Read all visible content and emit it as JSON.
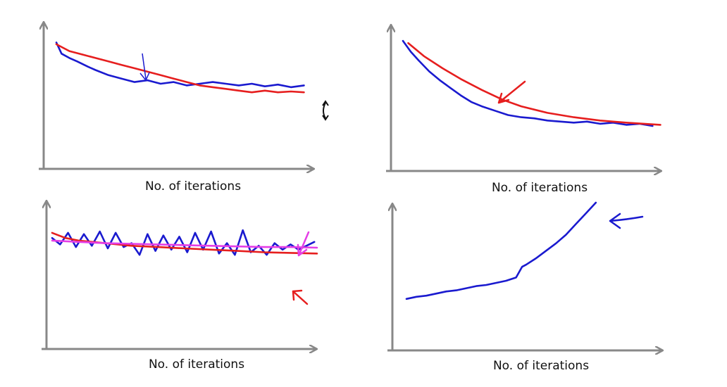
{
  "chart_data": [
    {
      "type": "line",
      "xlabel": "No. of iterations",
      "ylabel": "",
      "grid": false,
      "xlim": [
        0,
        100
      ],
      "ylim": [
        0,
        100
      ],
      "series": [
        {
          "color": "#1a1acf",
          "x": [
            0,
            2,
            5,
            8,
            12,
            15,
            20,
            25,
            30,
            35,
            40,
            45,
            50,
            55,
            60,
            65,
            70,
            75,
            80,
            85,
            90,
            95
          ],
          "y": [
            98,
            85,
            80,
            76,
            70,
            66,
            60,
            56,
            52,
            54,
            50,
            52,
            48,
            50,
            52,
            50,
            48,
            50,
            47,
            49,
            46,
            48
          ]
        },
        {
          "color": "#e61e1e",
          "x": [
            0,
            5,
            10,
            15,
            20,
            25,
            30,
            35,
            40,
            45,
            50,
            55,
            60,
            65,
            70,
            75,
            80,
            85,
            90,
            95
          ],
          "y": [
            96,
            88,
            84,
            80,
            76,
            72,
            68,
            64,
            60,
            56,
            52,
            48,
            46,
            44,
            42,
            40,
            42,
            40,
            41,
            40
          ]
        }
      ],
      "annotations": [
        {
          "text": "↓",
          "color": "#1a1acf"
        },
        {
          "text": "↕",
          "color": "#111111"
        }
      ]
    },
    {
      "type": "line",
      "xlabel": "No. of iterations",
      "ylabel": "",
      "grid": false,
      "xlim": [
        0,
        100
      ],
      "ylim": [
        0,
        100
      ],
      "series": [
        {
          "color": "#1a1acf",
          "x": [
            0,
            3,
            6,
            10,
            14,
            18,
            22,
            26,
            30,
            35,
            40,
            45,
            50,
            55,
            60,
            65,
            70,
            75,
            80,
            85,
            90,
            95
          ],
          "y": [
            98,
            88,
            80,
            70,
            62,
            55,
            48,
            42,
            38,
            34,
            30,
            28,
            27,
            25,
            24,
            23,
            24,
            22,
            23,
            21,
            22,
            20
          ]
        },
        {
          "color": "#e61e1e",
          "x": [
            2,
            8,
            15,
            22,
            30,
            38,
            45,
            55,
            65,
            75,
            85,
            98
          ],
          "y": [
            96,
            84,
            73,
            63,
            53,
            44,
            38,
            32,
            28,
            25,
            23,
            21
          ]
        }
      ],
      "annotations": [
        {
          "text": "↙",
          "color": "#e61e1e"
        }
      ]
    },
    {
      "type": "line",
      "xlabel": "No. of iterations",
      "ylabel": "",
      "grid": false,
      "xlim": [
        0,
        100
      ],
      "ylim": [
        0,
        100
      ],
      "series": [
        {
          "color": "#1a1acf",
          "x": [
            0,
            3,
            6,
            9,
            12,
            15,
            18,
            21,
            24,
            27,
            30,
            33,
            36,
            39,
            42,
            45,
            48,
            51,
            54,
            57,
            60,
            63,
            66,
            69,
            72,
            75,
            78,
            81,
            84,
            87,
            90,
            93,
            96,
            99
          ],
          "y": [
            78,
            68,
            86,
            64,
            84,
            66,
            88,
            62,
            86,
            64,
            70,
            52,
            84,
            58,
            82,
            60,
            80,
            56,
            86,
            60,
            88,
            54,
            70,
            52,
            90,
            56,
            66,
            52,
            70,
            60,
            68,
            60,
            66,
            72
          ]
        },
        {
          "color": "#e61e1e",
          "x": [
            0,
            5,
            10,
            20,
            30,
            40,
            50,
            60,
            70,
            80,
            90,
            100
          ],
          "y": [
            86,
            78,
            74,
            70,
            66,
            64,
            62,
            60,
            58,
            56,
            55,
            54
          ]
        },
        {
          "color": "#e43ee6",
          "x": [
            0,
            10,
            20,
            30,
            40,
            50,
            60,
            70,
            80,
            90,
            100
          ],
          "y": [
            74,
            72,
            70,
            69,
            68,
            67,
            66,
            65,
            64,
            64,
            63
          ]
        }
      ],
      "annotations": [
        {
          "text": "↙",
          "color": "#e43ee6"
        },
        {
          "text": "↖",
          "color": "#e61e1e"
        }
      ]
    },
    {
      "type": "line",
      "xlabel": "No. of iterations",
      "ylabel": "",
      "grid": false,
      "xlim": [
        0,
        100
      ],
      "ylim": [
        0,
        100
      ],
      "series": [
        {
          "color": "#1a1acf",
          "x": [
            0,
            5,
            10,
            15,
            20,
            25,
            30,
            35,
            40,
            45,
            50,
            55,
            58,
            60,
            65,
            70,
            75,
            80,
            85,
            90,
            95
          ],
          "y": [
            10,
            12,
            13,
            15,
            17,
            18,
            20,
            22,
            23,
            25,
            27,
            30,
            40,
            42,
            48,
            55,
            62,
            70,
            80,
            90,
            100
          ]
        }
      ],
      "annotations": [
        {
          "text": "←",
          "color": "#1a1acf"
        }
      ]
    }
  ]
}
